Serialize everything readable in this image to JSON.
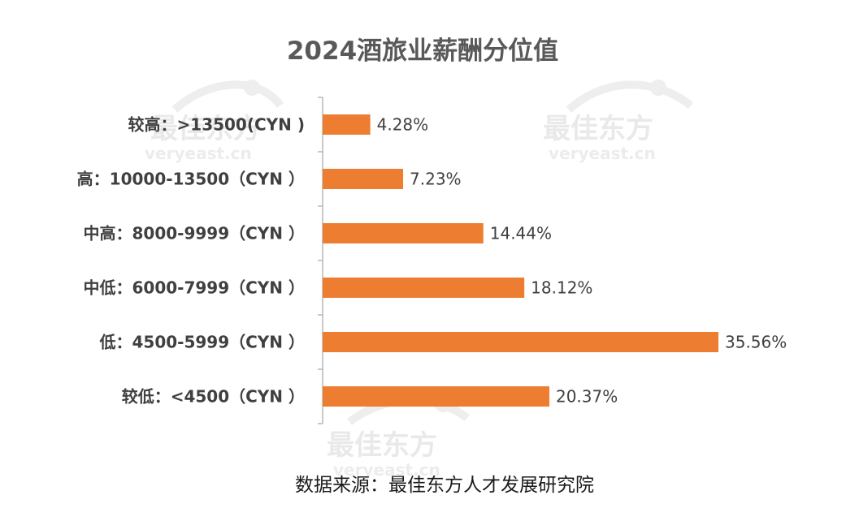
{
  "watermark": {
    "brand": "最佳东方",
    "domain": "veryeast.cn"
  },
  "source": "数据来源：最佳东方人才发展研究院",
  "colors": {
    "bar": "#ED7D31",
    "axis": "#a6a6a6",
    "title": "#595959",
    "label": "#404040",
    "watermark": "#e9e9e9"
  },
  "chart_data": {
    "type": "bar",
    "orientation": "horizontal",
    "title": "2024酒旅业薪酬分位值",
    "categories": [
      "较高：>13500(CYN )",
      "高：10000-13500（CYN ）",
      "中高：8000-9999（CYN ）",
      "中低：6000-7999（CYN ）",
      "低：4500-5999（CYN ）",
      "较低：<4500（CYN ）"
    ],
    "values": [
      4.28,
      7.23,
      14.44,
      18.12,
      35.56,
      20.37
    ],
    "data_labels": [
      "4.28%",
      "7.23%",
      "14.44%",
      "18.12%",
      "35.56%",
      "20.37%"
    ],
    "unit": "%",
    "xlim": [
      0,
      36
    ],
    "grid": false,
    "legend": "none"
  }
}
